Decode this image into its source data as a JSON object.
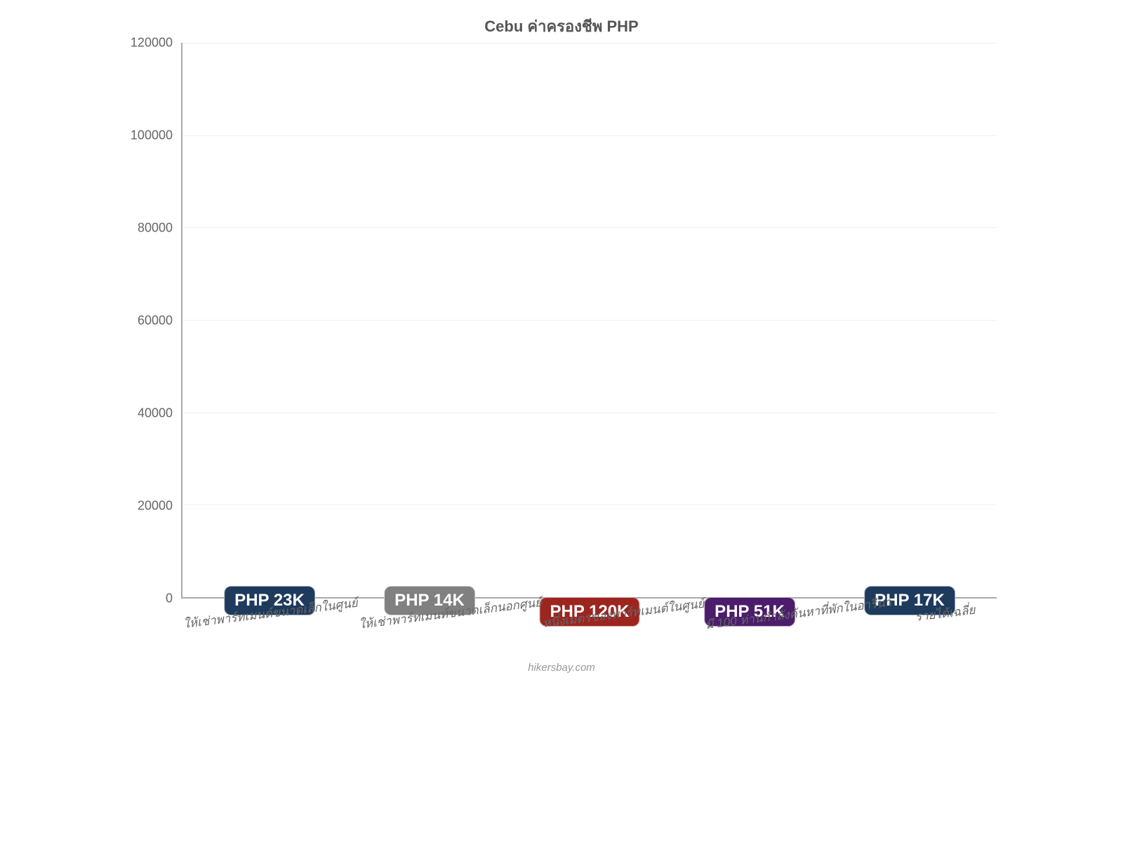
{
  "chart": {
    "type": "bar",
    "title": "Cebu ค่าครองชีพ PHP",
    "title_color": "#555555",
    "title_fontsize": 22,
    "background_color": "#ffffff",
    "grid_color": "#eeeeee",
    "axis_color": "#aaaaaa",
    "tick_label_color": "#666666",
    "tick_label_fontsize": 18,
    "x_label_fontsize": 17,
    "ylim": [
      0,
      120000
    ],
    "ytick_step": 20000,
    "yticks": [
      0,
      20000,
      40000,
      60000,
      80000,
      100000,
      120000
    ],
    "categories": [
      "ให้เช่าพาร์ทเมนต์ขนาดเล็กในศูนย์",
      "ให้เช่าพาร์ทเมนท์ขนาดเล็กนอกศูนย์",
      "หนึ่งเมตรของพาร์ทเมนต์ในศูนย์",
      "มี 100 ท่านกำลังค้นหาที่พักในอารีนา",
      "รายได้เฉลี่ย"
    ],
    "values": [
      23000,
      14000,
      120000,
      51000,
      17000
    ],
    "bar_colors": [
      "#2e8fdb",
      "#2e8fdb",
      "#e83a34",
      "#a436e0",
      "#2e8fdb"
    ],
    "value_labels": [
      "PHP 23K",
      "PHP 14K",
      "PHP 120K",
      "PHP 51K",
      "PHP 17K"
    ],
    "value_label_colors": [
      "#1e3a5c",
      "#808080",
      "#9c2520",
      "#4b1d6b",
      "#1e3a5c"
    ],
    "value_label_positions": [
      "above",
      "above",
      "inside",
      "inside",
      "above"
    ],
    "value_label_fontsize": 24,
    "bar_width": 0.9,
    "aspect_ratio": "4:3"
  },
  "attribution": "hikersbay.com"
}
